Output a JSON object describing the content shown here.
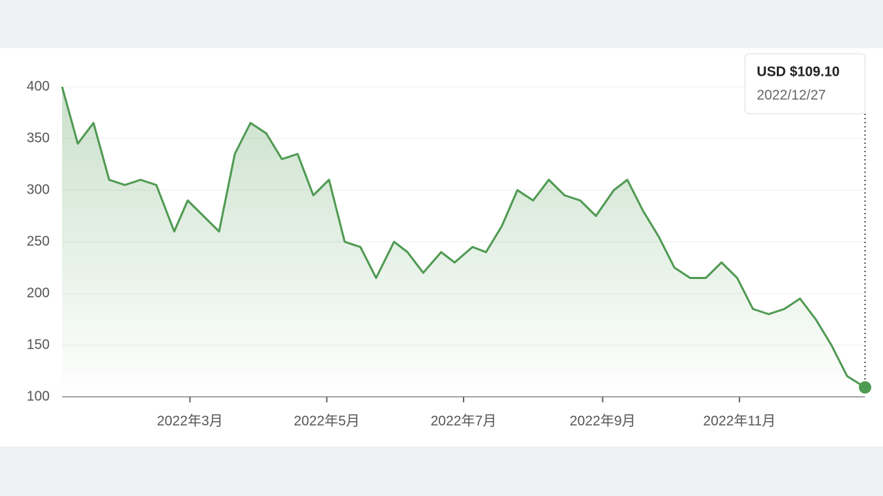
{
  "chart_data": {
    "type": "line",
    "x": [
      "2022/01/03",
      "2022/01/10",
      "2022/01/17",
      "2022/01/24",
      "2022/01/31",
      "2022/02/07",
      "2022/02/14",
      "2022/02/22",
      "2022/02/28",
      "2022/03/07",
      "2022/03/14",
      "2022/03/21",
      "2022/03/28",
      "2022/04/04",
      "2022/04/11",
      "2022/04/18",
      "2022/04/25",
      "2022/05/02",
      "2022/05/09",
      "2022/05/16",
      "2022/05/23",
      "2022/05/31",
      "2022/06/06",
      "2022/06/13",
      "2022/06/21",
      "2022/06/27",
      "2022/07/05",
      "2022/07/11",
      "2022/07/18",
      "2022/07/25",
      "2022/08/01",
      "2022/08/08",
      "2022/08/15",
      "2022/08/22",
      "2022/08/29",
      "2022/09/06",
      "2022/09/12",
      "2022/09/19",
      "2022/09/26",
      "2022/10/03",
      "2022/10/10",
      "2022/10/17",
      "2022/10/24",
      "2022/10/31",
      "2022/11/07",
      "2022/11/14",
      "2022/11/21",
      "2022/11/28",
      "2022/12/05",
      "2022/12/12",
      "2022/12/19",
      "2022/12/27"
    ],
    "values": [
      400,
      345,
      365,
      310,
      305,
      310,
      305,
      260,
      290,
      275,
      260,
      335,
      365,
      355,
      330,
      335,
      295,
      310,
      250,
      245,
      215,
      250,
      240,
      220,
      240,
      230,
      245,
      240,
      265,
      300,
      290,
      310,
      295,
      290,
      275,
      300,
      310,
      280,
      255,
      225,
      215,
      215,
      230,
      215,
      185,
      180,
      185,
      195,
      175,
      150,
      120,
      109.1
    ],
    "color": "#4f9a52",
    "xlim": [
      "2022/01/03",
      "2022/12/27"
    ],
    "xticks": [
      {
        "value": "2022/03/01",
        "label": "2022年3月"
      },
      {
        "value": "2022/05/01",
        "label": "2022年5月"
      },
      {
        "value": "2022/07/01",
        "label": "2022年7月"
      },
      {
        "value": "2022/09/01",
        "label": "2022年9月"
      },
      {
        "value": "2022/11/01",
        "label": "2022年11月"
      }
    ],
    "ylim": [
      100,
      400
    ],
    "yticks": [
      100,
      150,
      200,
      250,
      300,
      350,
      400
    ],
    "grid": true,
    "tooltip": {
      "text": "USD $109.10"
    }
  }
}
